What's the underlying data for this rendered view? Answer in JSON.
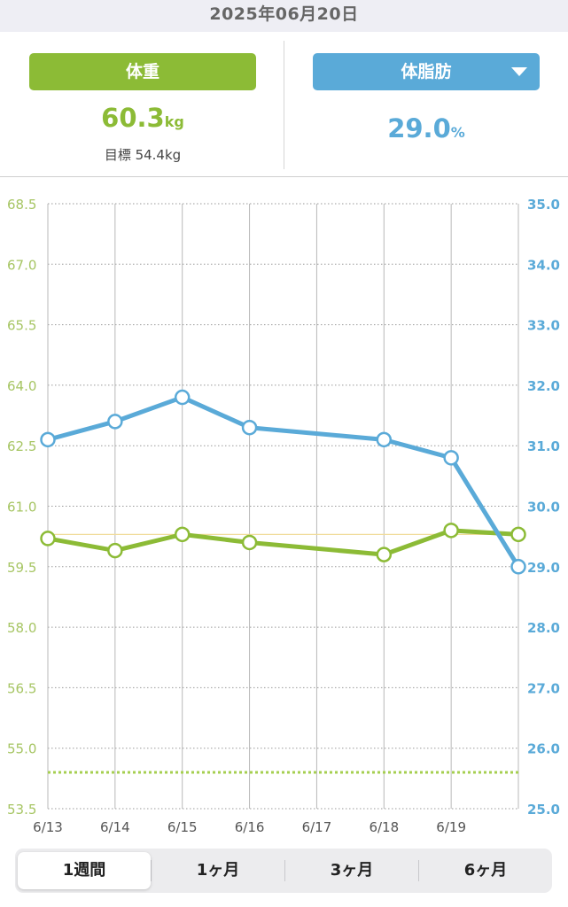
{
  "header": {
    "date": "2025年06月20日"
  },
  "weight": {
    "label": "体重",
    "value": "60.3",
    "unit": "kg",
    "target_text": "目標 54.4kg",
    "color": "#8cbb36"
  },
  "body_fat": {
    "label": "体脂肪",
    "value": "29.0",
    "unit": "%",
    "color": "#5aaad8",
    "dropdown_icon": "caret-down-icon"
  },
  "tabs": [
    {
      "label": "1週間",
      "active": true
    },
    {
      "label": "1ヶ月",
      "active": false
    },
    {
      "label": "3ヶ月",
      "active": false
    },
    {
      "label": "6ヶ月",
      "active": false
    }
  ],
  "chart_data": {
    "type": "line",
    "x": [
      "6/13",
      "6/14",
      "6/15",
      "6/16",
      "6/17",
      "6/18",
      "6/19",
      "6/20"
    ],
    "x_tick_labels": [
      "6/13",
      "6/14",
      "6/15",
      "6/16",
      "6/17",
      "6/18",
      "6/19",
      ""
    ],
    "left_axis": {
      "ylim": [
        53.5,
        68.5
      ],
      "ticks": [
        "53.5",
        "55.0",
        "56.5",
        "58.0",
        "59.5",
        "61.0",
        "62.5",
        "64.0",
        "65.5",
        "67.0",
        "68.5"
      ],
      "color": "#a6c563"
    },
    "right_axis": {
      "ylim": [
        25.0,
        35.0
      ],
      "ticks": [
        "25.0",
        "26.0",
        "27.0",
        "28.0",
        "29.0",
        "30.0",
        "31.0",
        "32.0",
        "33.0",
        "34.0",
        "35.0"
      ],
      "color": "#5aaad8"
    },
    "series": [
      {
        "axis": "left",
        "color": "#8cbb36",
        "points": [
          {
            "x": "6/13",
            "y": 60.2
          },
          {
            "x": "6/14",
            "y": 59.9
          },
          {
            "x": "6/15",
            "y": 60.3
          },
          {
            "x": "6/16",
            "y": 60.1
          },
          {
            "x": "6/18",
            "y": 59.8
          },
          {
            "x": "6/19",
            "y": 60.4
          },
          {
            "x": "6/20",
            "y": 60.3
          }
        ]
      },
      {
        "axis": "right",
        "color": "#5aaad8",
        "points": [
          {
            "x": "6/13",
            "y": 31.1
          },
          {
            "x": "6/14",
            "y": 31.4
          },
          {
            "x": "6/15",
            "y": 31.8
          },
          {
            "x": "6/16",
            "y": 31.3
          },
          {
            "x": "6/18",
            "y": 31.1
          },
          {
            "x": "6/19",
            "y": 30.8
          },
          {
            "x": "6/20",
            "y": 29.0
          }
        ]
      }
    ],
    "reference_lines": [
      {
        "axis": "left",
        "value": 60.3,
        "style": "solid",
        "color": "#f0dc9a"
      },
      {
        "axis": "left",
        "value": 54.4,
        "style": "dotted",
        "color": "#a6cf50"
      }
    ],
    "grid": true
  }
}
